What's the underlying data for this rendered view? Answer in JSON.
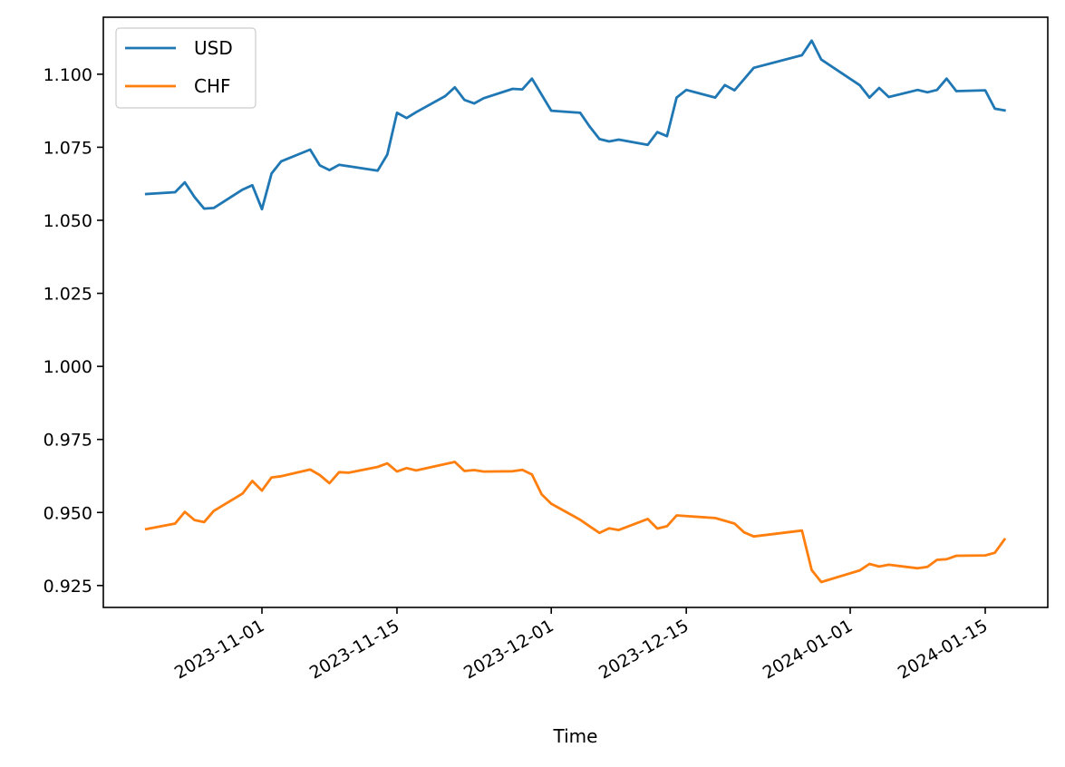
{
  "chart_data": {
    "type": "line",
    "title": "",
    "xlabel": "Time",
    "ylabel": "",
    "xlim": [
      "2023-10-20",
      "2024-01-20"
    ],
    "ylim": [
      0.9175,
      1.1195
    ],
    "grid": false,
    "legend": {
      "placement": "top-left"
    },
    "x_ticks": [
      "2023-11-01",
      "2023-11-15",
      "2023-12-01",
      "2023-12-15",
      "2024-01-01",
      "2024-01-15"
    ],
    "y_ticks": [
      0.925,
      0.95,
      0.975,
      1.0,
      1.025,
      1.05,
      1.075,
      1.1
    ],
    "y_tick_labels": [
      "0.925",
      "0.950",
      "0.975",
      "1.000",
      "1.025",
      "1.050",
      "1.075",
      "1.100"
    ],
    "series": [
      {
        "name": "USD",
        "color": "#1f77b4",
        "points": [
          [
            "2023-10-20",
            1.059
          ],
          [
            "2023-10-23",
            1.0596
          ],
          [
            "2023-10-24",
            1.063
          ],
          [
            "2023-10-25",
            1.058
          ],
          [
            "2023-10-26",
            1.054
          ],
          [
            "2023-10-27",
            1.0542
          ],
          [
            "2023-10-30",
            1.0605
          ],
          [
            "2023-10-31",
            1.062
          ],
          [
            "2023-11-01",
            1.0538
          ],
          [
            "2023-11-02",
            1.066
          ],
          [
            "2023-11-03",
            1.0702
          ],
          [
            "2023-11-06",
            1.0742
          ],
          [
            "2023-11-07",
            1.0688
          ],
          [
            "2023-11-08",
            1.0672
          ],
          [
            "2023-11-09",
            1.069
          ],
          [
            "2023-11-10",
            1.0685
          ],
          [
            "2023-11-13",
            1.067
          ],
          [
            "2023-11-14",
            1.0725
          ],
          [
            "2023-11-15",
            1.0868
          ],
          [
            "2023-11-16",
            1.085
          ],
          [
            "2023-11-17",
            1.087
          ],
          [
            "2023-11-20",
            1.0925
          ],
          [
            "2023-11-21",
            1.0955
          ],
          [
            "2023-11-22",
            1.0912
          ],
          [
            "2023-11-23",
            1.09
          ],
          [
            "2023-11-24",
            1.0918
          ],
          [
            "2023-11-27",
            1.095
          ],
          [
            "2023-11-28",
            1.0948
          ],
          [
            "2023-11-29",
            1.0985
          ],
          [
            "2023-12-01",
            1.0875
          ],
          [
            "2023-12-04",
            1.0868
          ],
          [
            "2023-12-05",
            1.082
          ],
          [
            "2023-12-06",
            1.0778
          ],
          [
            "2023-12-07",
            1.077
          ],
          [
            "2023-12-08",
            1.0776
          ],
          [
            "2023-12-11",
            1.0758
          ],
          [
            "2023-12-12",
            1.0802
          ],
          [
            "2023-12-13",
            1.0788
          ],
          [
            "2023-12-14",
            1.092
          ],
          [
            "2023-12-15",
            1.0946
          ],
          [
            "2023-12-18",
            1.092
          ],
          [
            "2023-12-19",
            1.0963
          ],
          [
            "2023-12-20",
            1.0945
          ],
          [
            "2023-12-22",
            1.1022
          ],
          [
            "2023-12-27",
            1.1065
          ],
          [
            "2023-12-28",
            1.1115
          ],
          [
            "2023-12-29",
            1.105
          ],
          [
            "2024-01-02",
            1.0962
          ],
          [
            "2024-01-03",
            1.092
          ],
          [
            "2024-01-04",
            1.0953
          ],
          [
            "2024-01-05",
            1.0922
          ],
          [
            "2024-01-08",
            1.0946
          ],
          [
            "2024-01-09",
            1.0938
          ],
          [
            "2024-01-10",
            1.0946
          ],
          [
            "2024-01-11",
            1.0985
          ],
          [
            "2024-01-12",
            1.0942
          ],
          [
            "2024-01-15",
            1.0945
          ],
          [
            "2024-01-16",
            1.0882
          ],
          [
            "2024-01-17",
            1.0876
          ]
        ]
      },
      {
        "name": "CHF",
        "color": "#ff7f0e",
        "points": [
          [
            "2023-10-20",
            0.9443
          ],
          [
            "2023-10-23",
            0.9462
          ],
          [
            "2023-10-24",
            0.9502
          ],
          [
            "2023-10-25",
            0.9474
          ],
          [
            "2023-10-26",
            0.9467
          ],
          [
            "2023-10-27",
            0.9505
          ],
          [
            "2023-10-30",
            0.9565
          ],
          [
            "2023-10-31",
            0.9608
          ],
          [
            "2023-11-01",
            0.9575
          ],
          [
            "2023-11-02",
            0.962
          ],
          [
            "2023-11-03",
            0.9624
          ],
          [
            "2023-11-06",
            0.9647
          ],
          [
            "2023-11-07",
            0.9628
          ],
          [
            "2023-11-08",
            0.96
          ],
          [
            "2023-11-09",
            0.9638
          ],
          [
            "2023-11-10",
            0.9636
          ],
          [
            "2023-11-13",
            0.9656
          ],
          [
            "2023-11-14",
            0.9668
          ],
          [
            "2023-11-15",
            0.964
          ],
          [
            "2023-11-16",
            0.9652
          ],
          [
            "2023-11-17",
            0.9644
          ],
          [
            "2023-11-21",
            0.9673
          ],
          [
            "2023-11-22",
            0.9642
          ],
          [
            "2023-11-23",
            0.9645
          ],
          [
            "2023-11-24",
            0.964
          ],
          [
            "2023-11-27",
            0.9641
          ],
          [
            "2023-11-28",
            0.9646
          ],
          [
            "2023-11-29",
            0.963
          ],
          [
            "2023-11-30",
            0.9562
          ],
          [
            "2023-12-01",
            0.953
          ],
          [
            "2023-12-04",
            0.9475
          ],
          [
            "2023-12-05",
            0.9452
          ],
          [
            "2023-12-06",
            0.943
          ],
          [
            "2023-12-07",
            0.9446
          ],
          [
            "2023-12-08",
            0.944
          ],
          [
            "2023-12-11",
            0.9478
          ],
          [
            "2023-12-12",
            0.9445
          ],
          [
            "2023-12-13",
            0.9453
          ],
          [
            "2023-12-14",
            0.949
          ],
          [
            "2023-12-18",
            0.9481
          ],
          [
            "2023-12-20",
            0.9462
          ],
          [
            "2023-12-21",
            0.9432
          ],
          [
            "2023-12-22",
            0.9418
          ],
          [
            "2023-12-27",
            0.9438
          ],
          [
            "2023-12-28",
            0.9303
          ],
          [
            "2023-12-29",
            0.9262
          ],
          [
            "2024-01-02",
            0.9302
          ],
          [
            "2024-01-03",
            0.9324
          ],
          [
            "2024-01-04",
            0.9315
          ],
          [
            "2024-01-05",
            0.9321
          ],
          [
            "2024-01-08",
            0.9309
          ],
          [
            "2024-01-09",
            0.9314
          ],
          [
            "2024-01-10",
            0.9338
          ],
          [
            "2024-01-11",
            0.934
          ],
          [
            "2024-01-12",
            0.9352
          ],
          [
            "2024-01-15",
            0.9353
          ],
          [
            "2024-01-16",
            0.9362
          ],
          [
            "2024-01-17",
            0.9408
          ]
        ]
      }
    ]
  }
}
